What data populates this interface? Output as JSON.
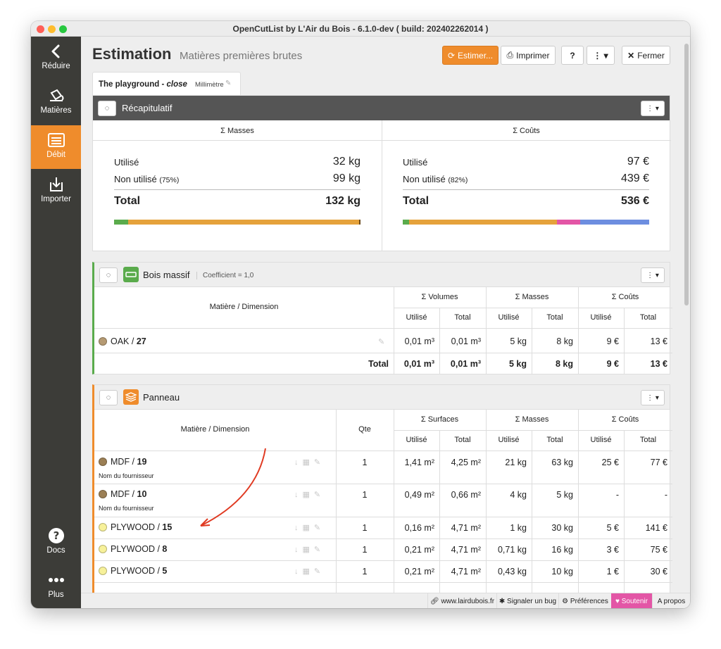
{
  "window": {
    "title": "OpenCutList by L'Air du Bois - 6.1.0-dev ( build: 202402262014 )",
    "colors": {
      "close": "#ff5f57",
      "minimize": "#febc2e",
      "zoom": "#28c840",
      "accent": "#ef8c2c",
      "sidebar": "#3c3c38"
    }
  },
  "sidebar": {
    "items": [
      {
        "label": "Réduire",
        "icon": "chevron-left-icon"
      },
      {
        "label": "Matières",
        "icon": "paint-bucket-icon"
      },
      {
        "label": "Débit",
        "icon": "cutlist-icon",
        "active": true
      },
      {
        "label": "Importer",
        "icon": "import-icon"
      },
      {
        "label": "Docs",
        "icon": "help-circle-icon"
      },
      {
        "label": "Plus",
        "icon": "more-dots-icon"
      }
    ]
  },
  "header": {
    "title": "Estimation",
    "subtitle": "Matières premières brutes",
    "buttons": {
      "estimate": "Estimer...",
      "print": "Imprimer",
      "help": "?",
      "more": "⋮ ▾",
      "close": "Fermer"
    }
  },
  "tab": {
    "model": "The playground - ",
    "model_state": "close",
    "unit": "Millimètre"
  },
  "summary": {
    "title": "Récapitulatif",
    "masses": {
      "header": "Σ Masses",
      "used_label": "Utilisé",
      "used": "32 kg",
      "unused_label": "Non utilisé",
      "unused_pct": "(75%)",
      "unused": "99 kg",
      "total_label": "Total",
      "total": "132 kg"
    },
    "costs": {
      "header": "Σ Coûts",
      "used_label": "Utilisé",
      "used": "97 €",
      "unused_label": "Non utilisé",
      "unused_pct": "(82%)",
      "unused": "439 €",
      "total_label": "Total",
      "total": "536 €"
    },
    "mass_bar": [
      {
        "color": "#5aab4c",
        "fraction": 0.057
      },
      {
        "color": "#e5a23b",
        "fraction": 0.937
      },
      {
        "color": "#6b4b1d",
        "fraction": 0.006
      }
    ],
    "cost_bar": [
      {
        "color": "#5aab4c",
        "fraction": 0.026
      },
      {
        "color": "#e5a23b",
        "fraction": 0.6
      },
      {
        "color": "#e356a6",
        "fraction": 0.094
      },
      {
        "color": "#6d8ee0",
        "fraction": 0.28
      }
    ]
  },
  "bois_massif": {
    "title": "Bois massif",
    "coefficient": "Coefficient = 1,0",
    "accent": "#5aab4c",
    "col_material": "Matière / Dimension",
    "groups": [
      "Σ Volumes",
      "Σ Masses",
      "Σ Coûts"
    ],
    "sub": [
      "Utilisé",
      "Total"
    ],
    "row": {
      "color": "#b59a73",
      "name": "OAK / ",
      "dim": "27",
      "values": [
        "0,01 m³",
        "0,01 m³",
        "5 kg",
        "8 kg",
        "9 €",
        "13 €"
      ]
    },
    "total": {
      "label": "Total",
      "values": [
        "0,01 m³",
        "0,01 m³",
        "5 kg",
        "8 kg",
        "9 €",
        "13 €"
      ]
    }
  },
  "panneau": {
    "title": "Panneau",
    "accent": "#ef8c2c",
    "col_material": "Matière / Dimension",
    "col_qty": "Qte",
    "groups": [
      "Σ Surfaces",
      "Σ Masses",
      "Σ Coûts"
    ],
    "sub": [
      "Utilisé",
      "Total"
    ],
    "rows": [
      {
        "color": "#9b7f55",
        "name": "MDF / ",
        "dim": "19",
        "supplier": "Nom du fournisseur",
        "qty": "1",
        "values": [
          "1,41 m²",
          "4,25 m²",
          "21 kg",
          "63 kg",
          "25 €",
          "77 €"
        ]
      },
      {
        "color": "#9b7f55",
        "name": "MDF / ",
        "dim": "10",
        "supplier": "Nom du fournisseur",
        "qty": "1",
        "values": [
          "0,49 m²",
          "0,66 m²",
          "4 kg",
          "5 kg",
          "-",
          "-"
        ]
      },
      {
        "color": "#f7f19a",
        "name": "PLYWOOD / ",
        "dim": "15",
        "supplier": "",
        "qty": "1",
        "values": [
          "0,16 m²",
          "4,71 m²",
          "1 kg",
          "30 kg",
          "5 €",
          "141 €"
        ]
      },
      {
        "color": "#f7f19a",
        "name": "PLYWOOD / ",
        "dim": "8",
        "supplier": "",
        "qty": "1",
        "values": [
          "0,21 m²",
          "4,71 m²",
          "0,71 kg",
          "16 kg",
          "3 €",
          "75 €"
        ]
      },
      {
        "color": "#f7f19a",
        "name": "PLYWOOD / ",
        "dim": "5",
        "supplier": "",
        "qty": "1",
        "values": [
          "0,21 m²",
          "4,71 m²",
          "0,43 kg",
          "10 kg",
          "1 €",
          "30 €"
        ]
      }
    ]
  },
  "footer": {
    "site": "www.lairdubois.fr",
    "bug": "Signaler un bug",
    "prefs": "Préférences",
    "support": "Soutenir",
    "about": "A propos"
  }
}
